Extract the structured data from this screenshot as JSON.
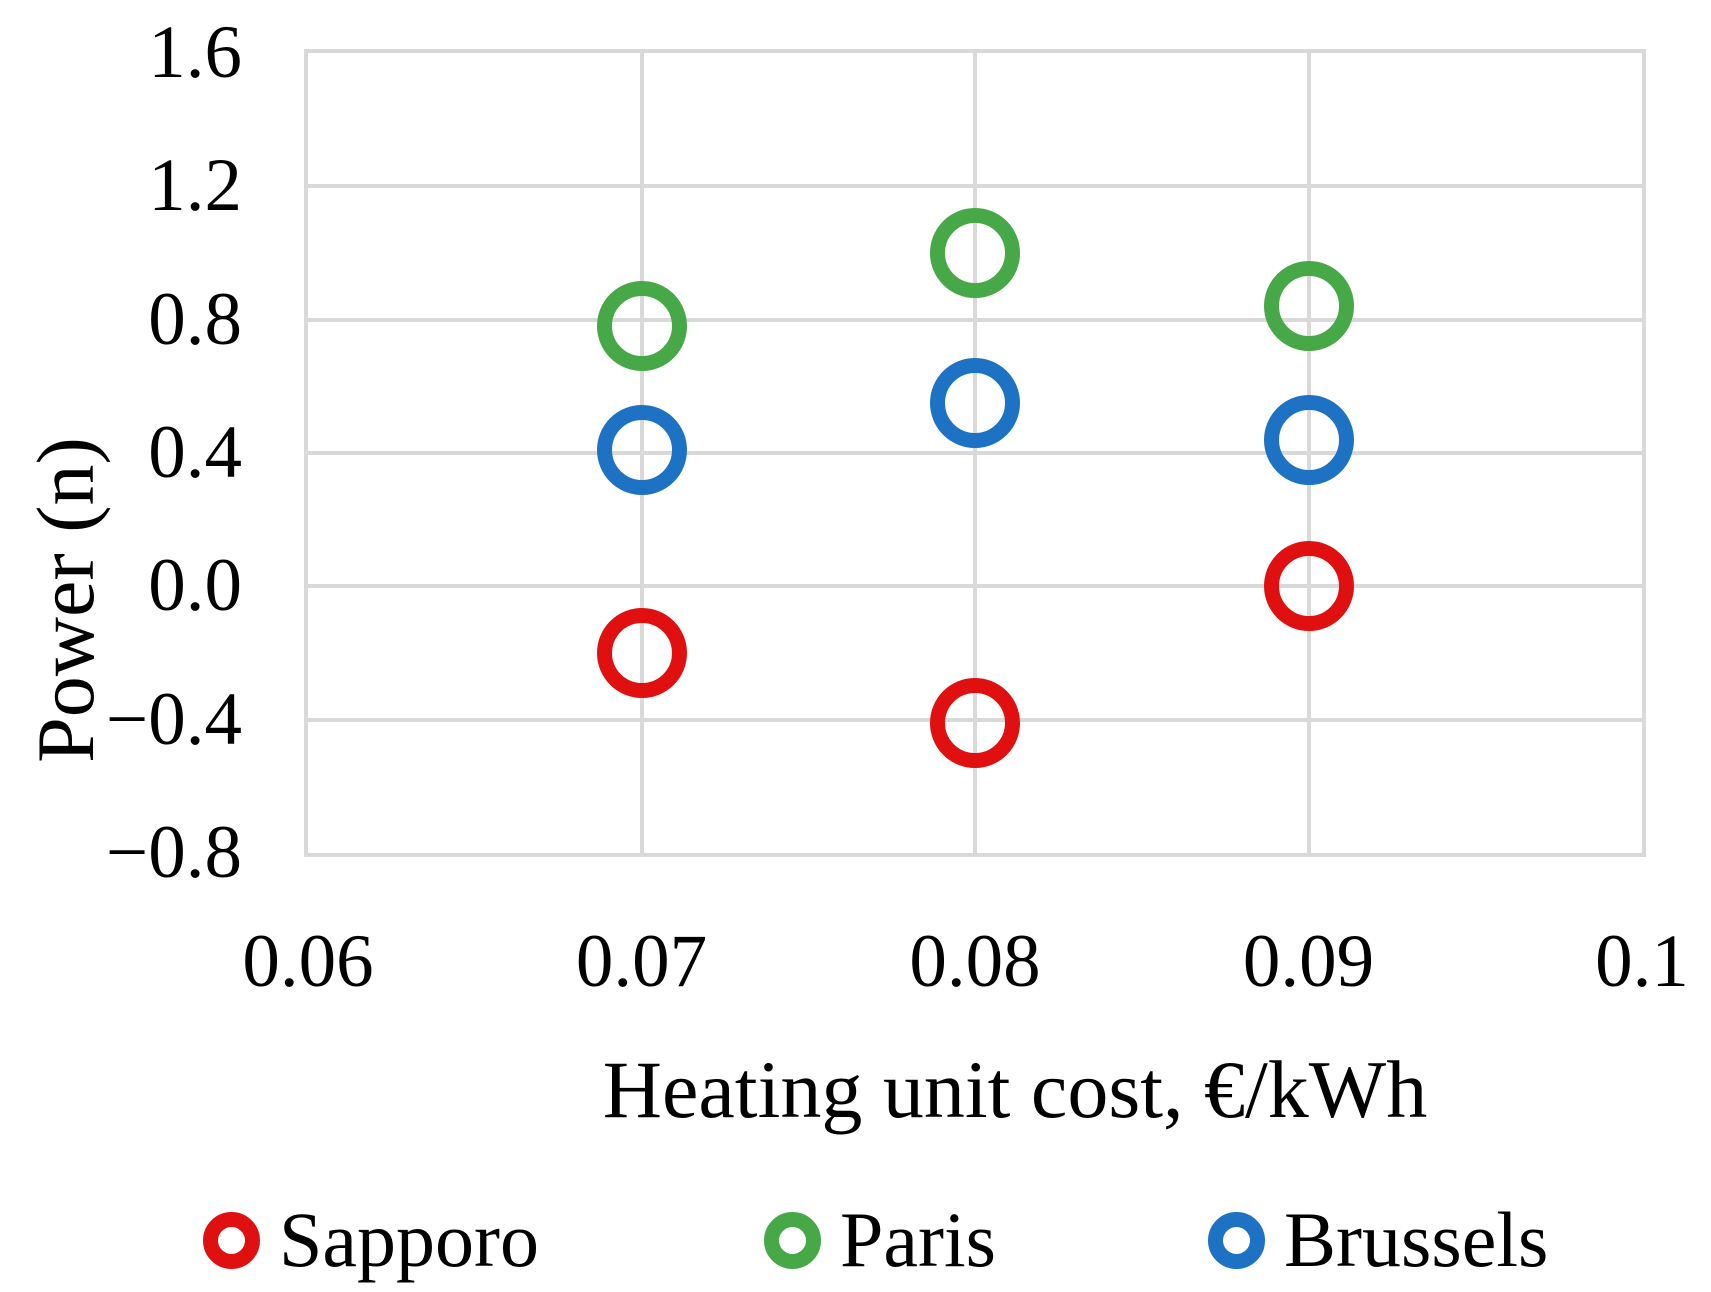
{
  "chart_data": {
    "type": "scatter",
    "title": "",
    "xlabel": "Heating unit cost, €/kWh",
    "ylabel": "Power (n)",
    "xlim": [
      0.06,
      0.1
    ],
    "ylim": [
      -0.8,
      1.6
    ],
    "grid": true,
    "gridline_color": "#d9d9d9",
    "x_ticks": [
      "0.06",
      "0.07",
      "0.08",
      "0.09",
      "0.1"
    ],
    "x_tick_values": [
      0.06,
      0.07,
      0.08,
      0.09,
      0.1
    ],
    "y_ticks": [
      "1.6",
      "1.2",
      "0.8",
      "0.4",
      "0.0",
      "−0.4",
      "−0.8"
    ],
    "y_tick_values": [
      1.6,
      1.2,
      0.8,
      0.4,
      0.0,
      -0.4,
      -0.8
    ],
    "marker": "open-circle",
    "x": [
      0.07,
      0.08,
      0.09
    ],
    "series": [
      {
        "name": "Sapporo",
        "color": "#e01010",
        "values": [
          -0.2,
          -0.41,
          0.0
        ]
      },
      {
        "name": "Paris",
        "color": "#47a847",
        "values": [
          0.78,
          1.0,
          0.84
        ]
      },
      {
        "name": "Brussels",
        "color": "#1d72c3",
        "values": [
          0.41,
          0.55,
          0.44
        ]
      }
    ],
    "legend_position": "bottom",
    "legend": [
      "Sapporo",
      "Paris",
      "Brussels"
    ]
  }
}
